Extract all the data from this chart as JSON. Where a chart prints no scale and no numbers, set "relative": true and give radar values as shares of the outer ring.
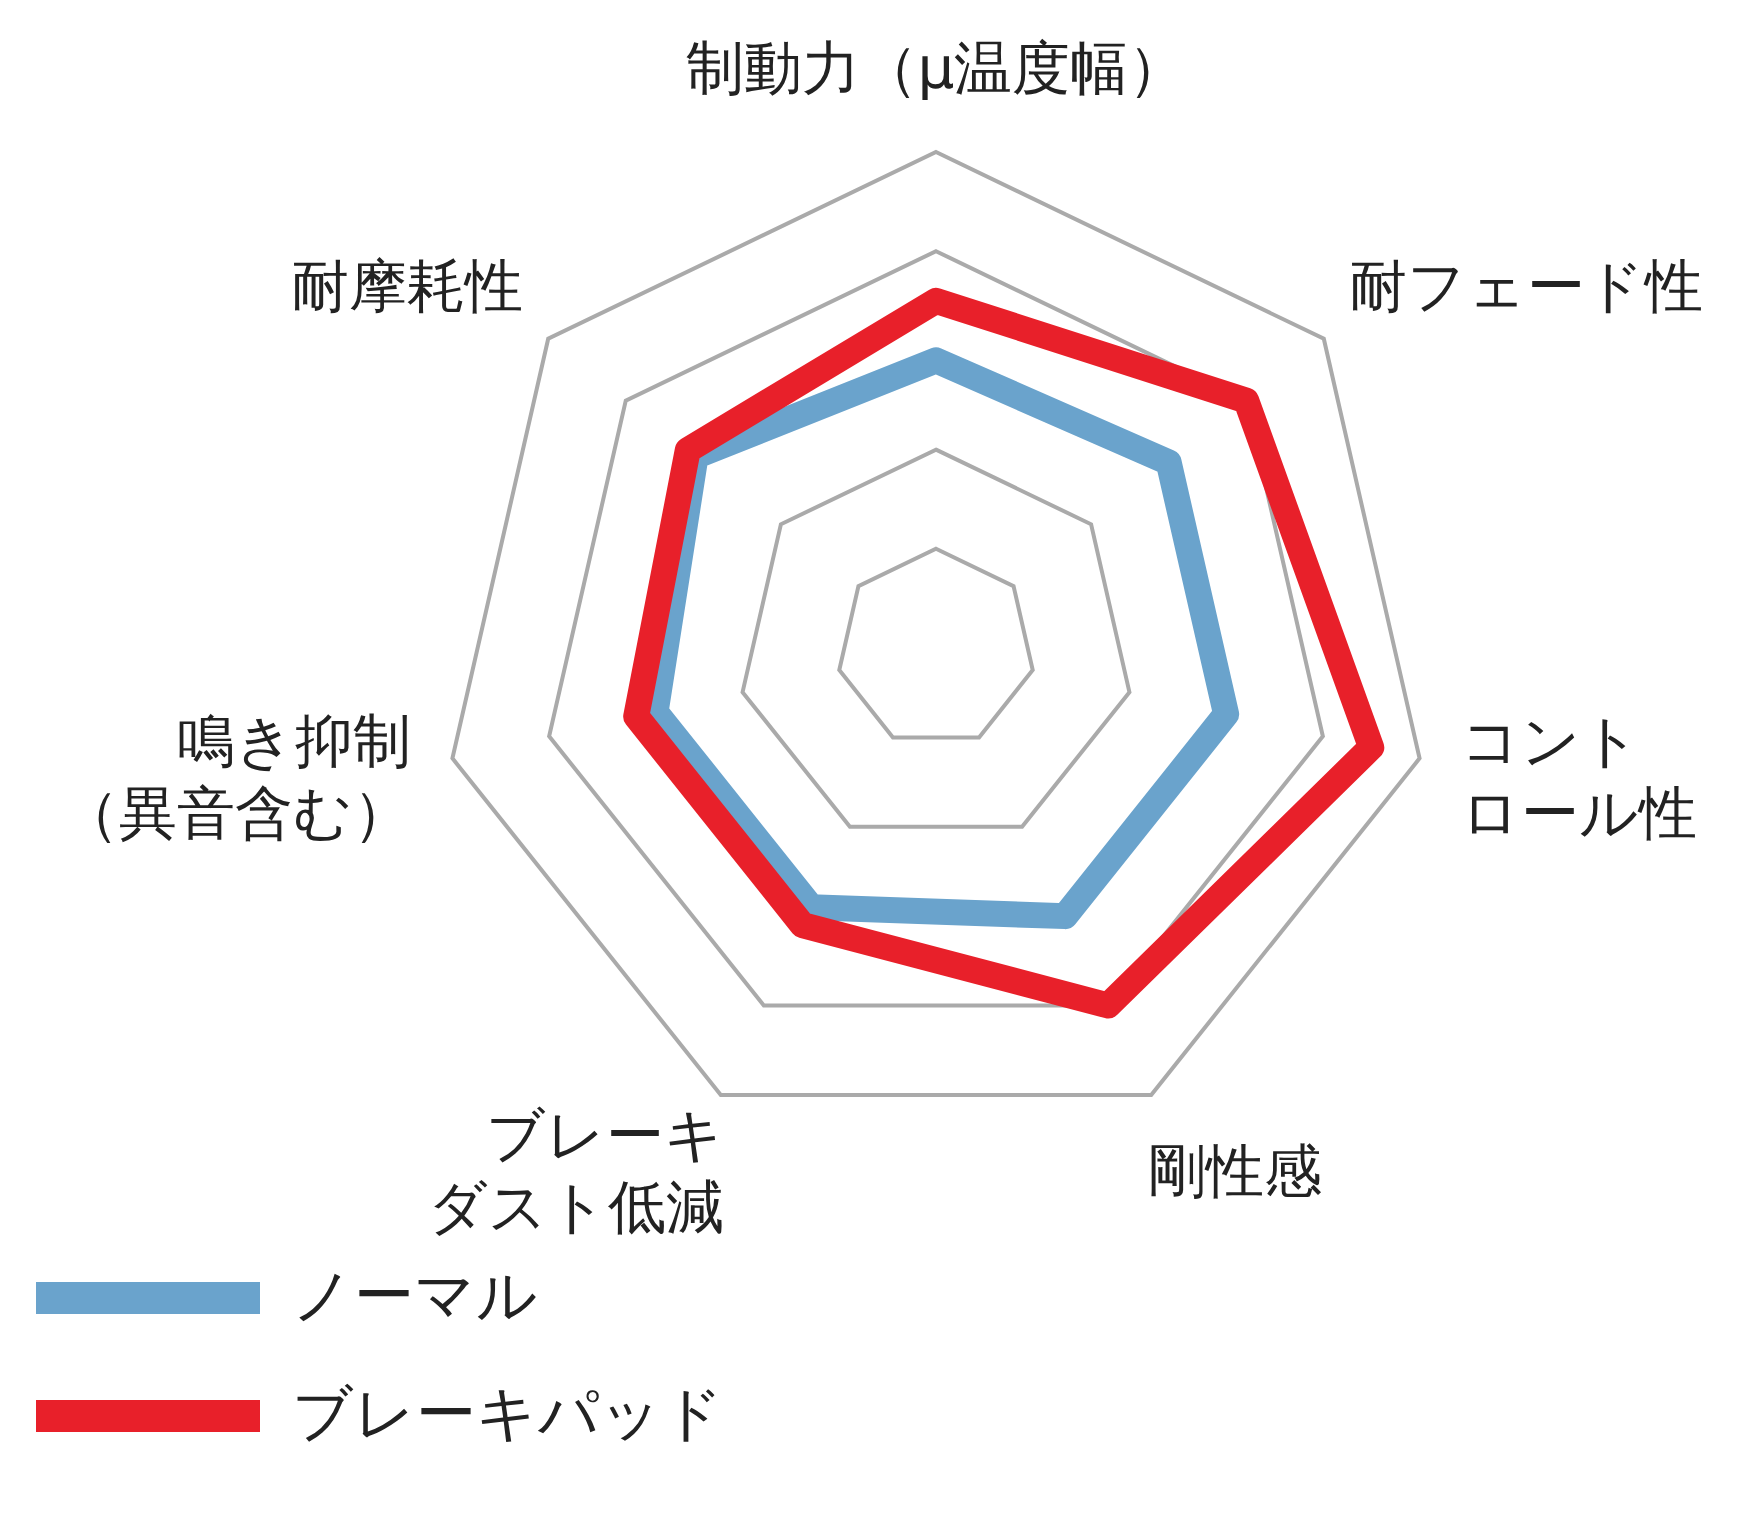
{
  "chart_data": {
    "type": "radar",
    "relative": true,
    "categories": [
      "制動力（μ温度幅）",
      "耐フェード性",
      "コントロール性",
      "剛性感",
      "ブレーキダスト低減",
      "鳴き抑制（異音含む）",
      "耐摩耗性"
    ],
    "series": [
      {
        "name": "ノーマル",
        "color": "#6aa3cc",
        "values": [
          0.58,
          0.6,
          0.6,
          0.6,
          0.58,
          0.58,
          0.62
        ]
      },
      {
        "name": "ブレーキパッド",
        "color": "#e8202a",
        "values": [
          0.7,
          0.8,
          0.9,
          0.8,
          0.62,
          0.62,
          0.64
        ]
      }
    ],
    "grid": true,
    "legend": "bottom left",
    "marker": "none"
  }
}
